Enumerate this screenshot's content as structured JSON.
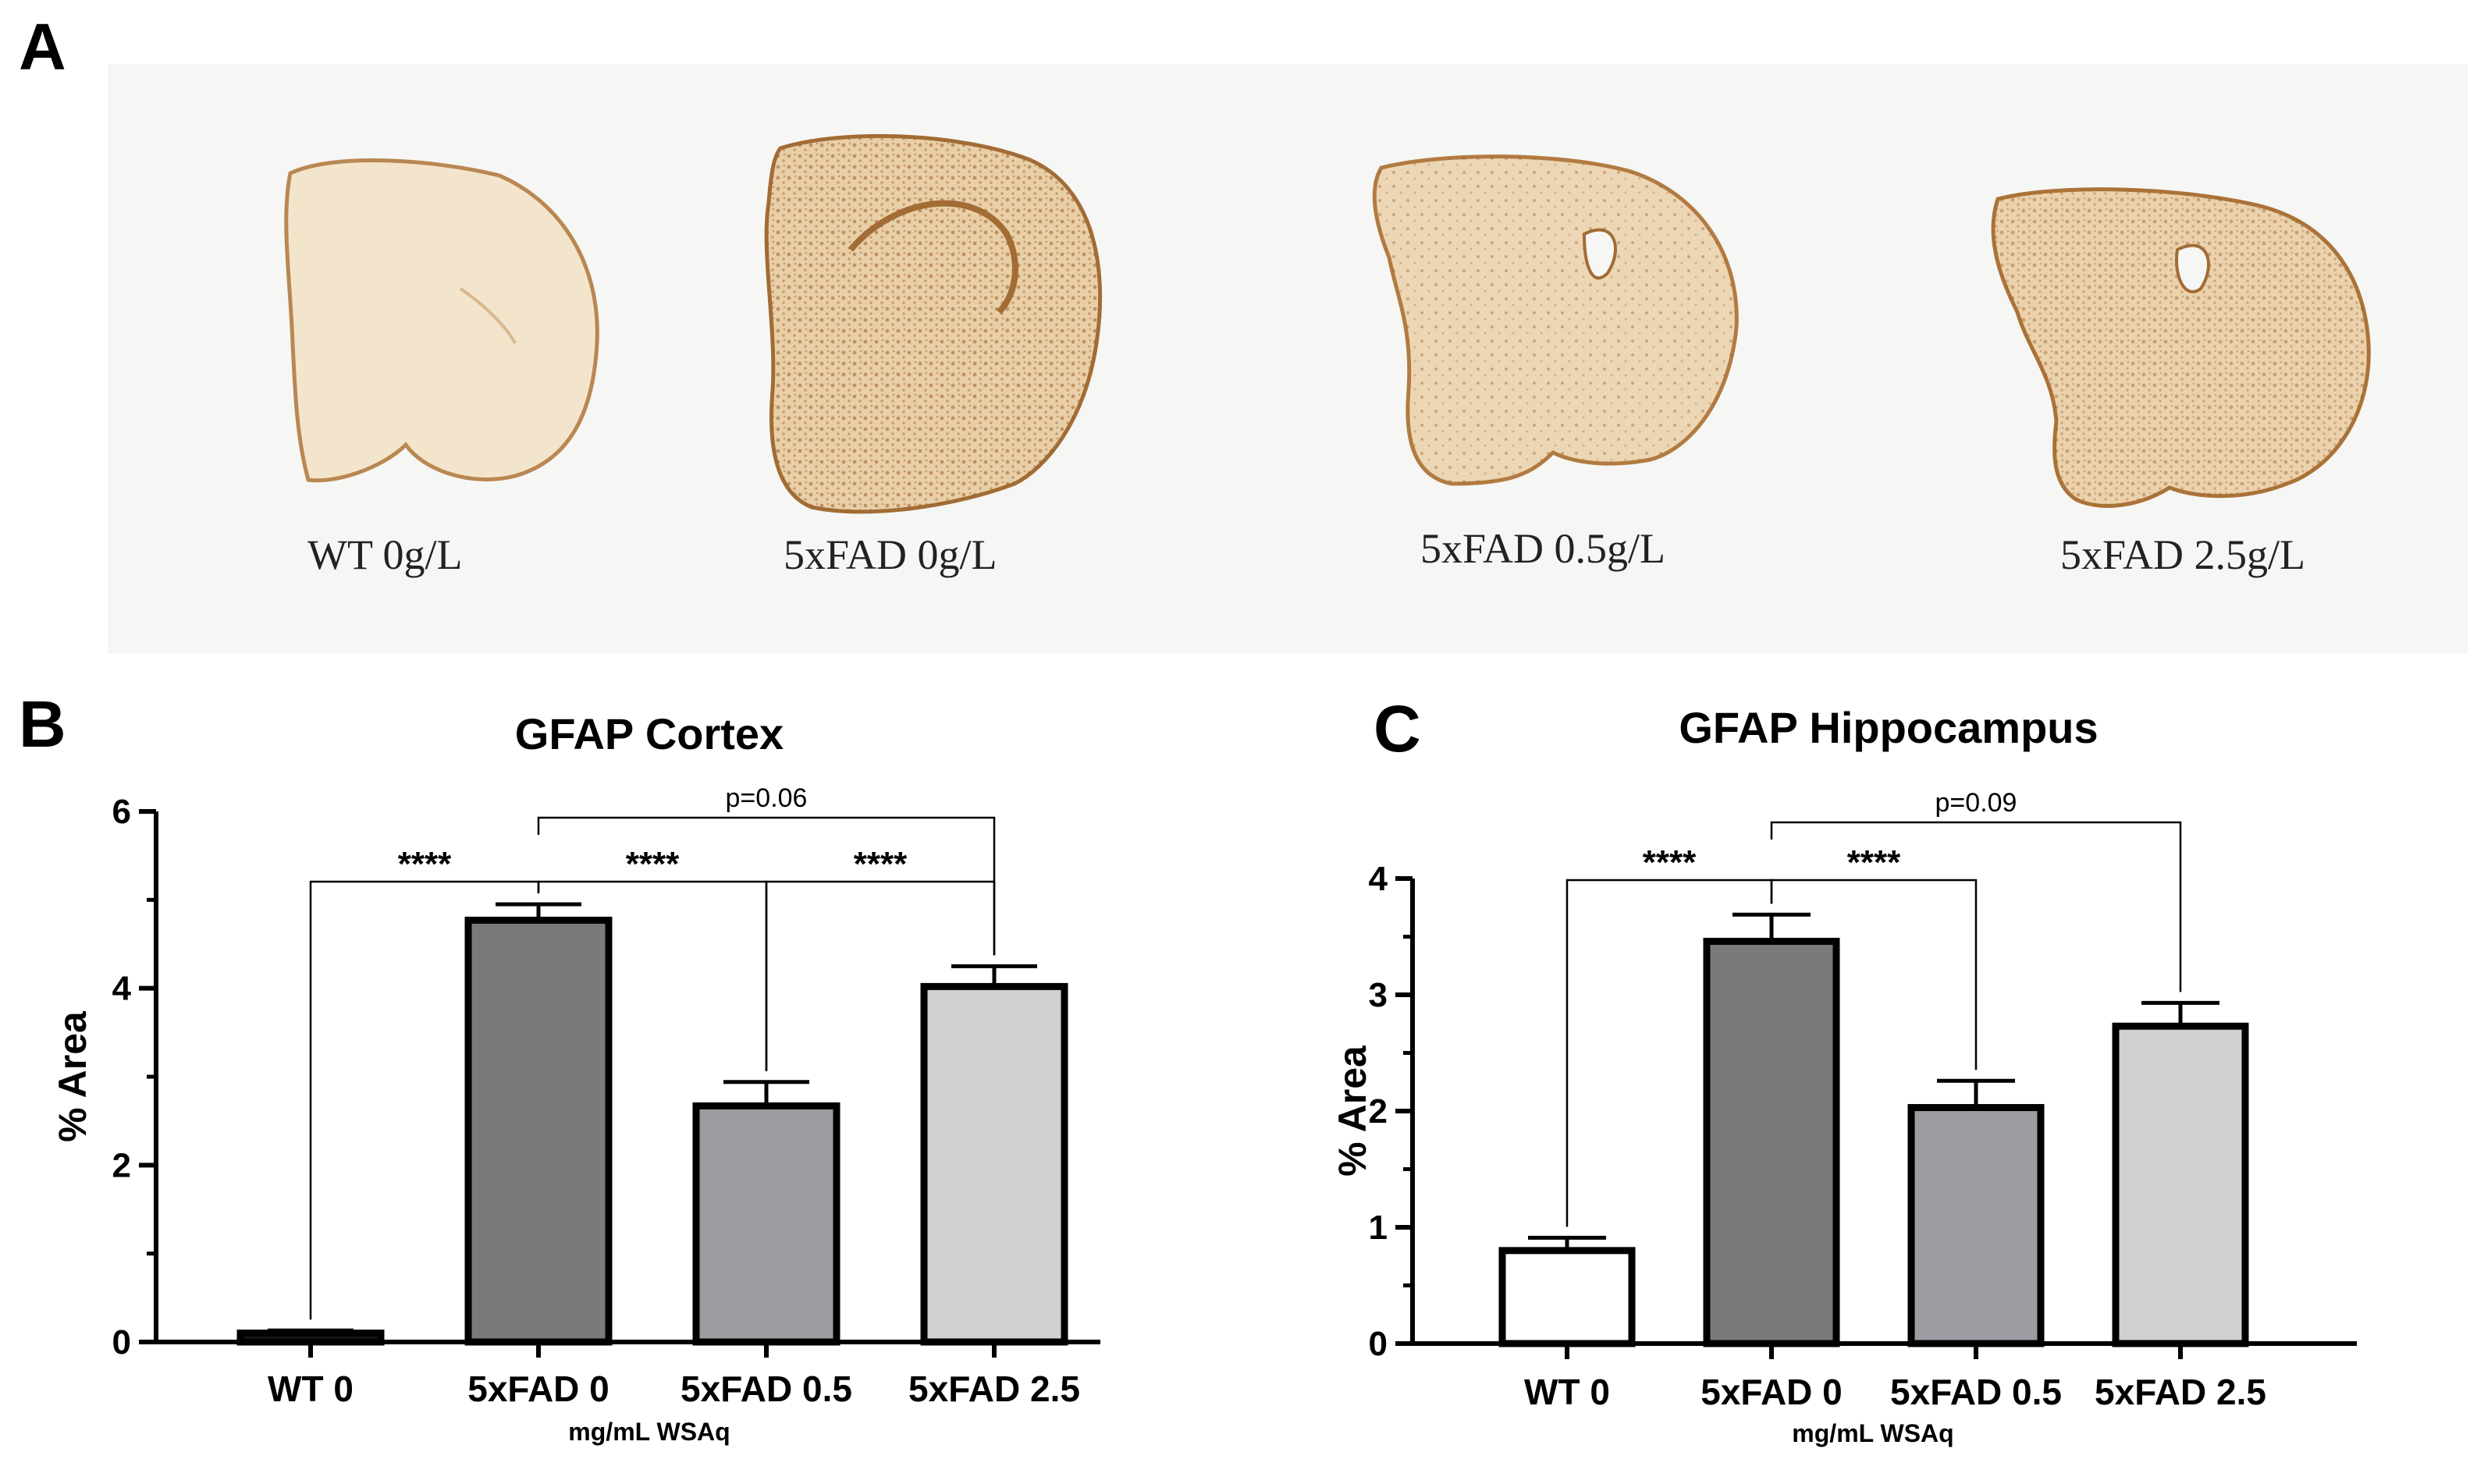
{
  "panels": {
    "a": "A",
    "b": "B",
    "c": "C"
  },
  "slices": [
    {
      "label": "WT 0g/L",
      "stain": "light"
    },
    {
      "label": "5xFAD 0g/L",
      "stain": "heavy"
    },
    {
      "label": "5xFAD 0.5g/L",
      "stain": "medium"
    },
    {
      "label": "5xFAD 2.5g/L",
      "stain": "medium-heavy"
    }
  ],
  "colors": {
    "wt_cortex": "#1a1a1a",
    "wt_hippocampus": "#ffffff",
    "fad0": "#7a7a7a",
    "fad05": "#9c9ca2",
    "fad25": "#d0d0d0",
    "stain": "#b5824a",
    "tissue": "#f0dfc6"
  },
  "chart_data": [
    {
      "type": "bar",
      "title": "GFAP Cortex",
      "ylabel": "% Area",
      "xlabel": "mg/mL WSAq",
      "categories": [
        "WT 0",
        "5xFAD 0",
        "5xFAD 0.5",
        "5xFAD 2.5"
      ],
      "values": [
        0.1,
        4.77,
        2.67,
        4.02
      ],
      "errors": [
        0.03,
        0.18,
        0.27,
        0.23
      ],
      "ylim": [
        0,
        6
      ],
      "yticks": [
        0,
        2,
        4,
        6
      ],
      "yminor": [
        1,
        3,
        5
      ],
      "comparisons": [
        {
          "a": 0,
          "b": 1,
          "label": "****",
          "level": 0
        },
        {
          "a": 1,
          "b": 2,
          "label": "****",
          "level": 0
        },
        {
          "a": 2,
          "b": 3,
          "label": "****",
          "level": 0
        },
        {
          "a": 1,
          "b": 3,
          "label": "p=0.06",
          "level": 1
        }
      ]
    },
    {
      "type": "bar",
      "title": "GFAP Hippocampus",
      "ylabel": "% Area",
      "xlabel": "mg/mL WSAq",
      "categories": [
        "WT 0",
        "5xFAD 0",
        "5xFAD 0.5",
        "5xFAD 2.5"
      ],
      "values": [
        0.8,
        3.46,
        2.03,
        2.73
      ],
      "errors": [
        0.11,
        0.23,
        0.23,
        0.2
      ],
      "ylim": [
        0,
        4
      ],
      "yticks": [
        0,
        1,
        2,
        3,
        4
      ],
      "yminor": [
        0.5,
        1.5,
        2.5,
        3.5
      ],
      "comparisons": [
        {
          "a": 0,
          "b": 1,
          "label": "****",
          "level": 0
        },
        {
          "a": 1,
          "b": 2,
          "label": "****",
          "level": 0
        },
        {
          "a": 1,
          "b": 3,
          "label": "p=0.09",
          "level": 1
        }
      ]
    }
  ]
}
